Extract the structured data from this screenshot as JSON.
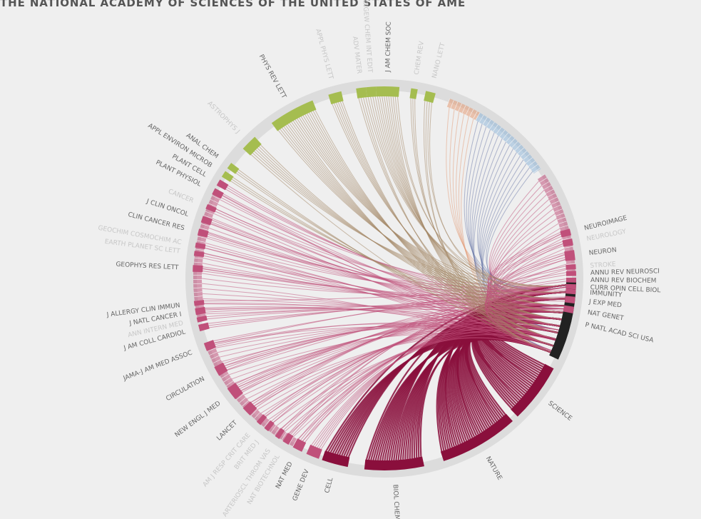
{
  "title": "THE NATIONAL ACADEMY OF SCIENCES OF THE UNITED STATES OF AME",
  "focus_journal": "P NATL ACAD SCI USA",
  "colors": {
    "background": "#efefef",
    "ring_track": "#dcdcdc",
    "focus": "#222222",
    "biomedical": "#c0507a",
    "biomedical_dark": "#8a0f3c",
    "physical": "#a5bd50",
    "chemistry_flow": "#a58a6a",
    "earth": "#e39a74",
    "computing": "#8fb6d9",
    "label_dark": "#666666",
    "label_light": "#c7c7c7"
  },
  "journals": [
    {
      "name": "P NATL ACAD SCI USA",
      "angle": 103,
      "size": 24,
      "group": "focus",
      "emph": true
    },
    {
      "name": "SCIENCE",
      "angle": 127,
      "size": 18,
      "group": "bio_dark",
      "emph": true
    },
    {
      "name": "NATURE",
      "angle": 150,
      "size": 24,
      "group": "bio_dark",
      "emph": true
    },
    {
      "name": "BIOL CHEM",
      "angle": 177,
      "size": 18,
      "group": "bio_dark",
      "emph": true
    },
    {
      "name": "CELL",
      "angle": 195,
      "size": 8,
      "group": "bio_dark",
      "emph": true
    },
    {
      "name": "GENE DEV",
      "angle": 202,
      "size": 4,
      "group": "bio",
      "emph": true
    },
    {
      "name": "NAT MED",
      "angle": 207,
      "size": 3,
      "group": "bio",
      "emph": true
    },
    {
      "name": "NAT BIOTECHNOL",
      "angle": 211,
      "size": 2,
      "group": "bio",
      "emph": false
    },
    {
      "name": "ARTERIOSCL THROM VAS",
      "angle": 214,
      "size": 1.5,
      "group": "bio",
      "emph": false
    },
    {
      "name": "BRIT MED J",
      "angle": 218,
      "size": 1.5,
      "group": "bio",
      "emph": false
    },
    {
      "name": "AM J RESP CRIT CARE",
      "angle": 221,
      "size": 1.5,
      "group": "bio",
      "emph": false
    },
    {
      "name": "LANCET",
      "angle": 226,
      "size": 3,
      "group": "bio",
      "emph": true
    },
    {
      "name": "NEW ENGL J MED",
      "angle": 233,
      "size": 4,
      "group": "bio",
      "emph": true
    },
    {
      "name": "CIRCULATION",
      "angle": 241,
      "size": 3,
      "group": "bio",
      "emph": true
    },
    {
      "name": "JAMA-J AM MED ASSOC",
      "angle": 249,
      "size": 2.5,
      "group": "bio",
      "emph": true
    },
    {
      "name": "J AM COLL CARDIOL",
      "angle": 255,
      "size": 2,
      "group": "bio",
      "emph": true
    },
    {
      "name": "ANN INTERN MED",
      "angle": 257.5,
      "size": 1.5,
      "group": "bio",
      "emph": false
    },
    {
      "name": "J NATL CANCER I",
      "angle": 260,
      "size": 2,
      "group": "bio",
      "emph": true
    },
    {
      "name": "J ALLERGY CLIN IMMUN",
      "angle": 262.5,
      "size": 1.5,
      "group": "bio",
      "emph": true
    },
    {
      "name": "GEOPHYS RES LETT",
      "angle": 273,
      "size": 2,
      "group": "bio",
      "emph": true
    },
    {
      "name": "EARTH PLANET SC LETT",
      "angle": 277.5,
      "size": 1.5,
      "group": "bio",
      "emph": false
    },
    {
      "name": "GEOCHIM COSMOCHIM AC",
      "angle": 280,
      "size": 1.5,
      "group": "bio",
      "emph": false
    },
    {
      "name": "CLIN CANCER RES",
      "angle": 284,
      "size": 2,
      "group": "bio",
      "emph": true
    },
    {
      "name": "J CLIN ONCOL",
      "angle": 288,
      "size": 2,
      "group": "bio",
      "emph": true
    },
    {
      "name": "CANCER",
      "angle": 292,
      "size": 1.5,
      "group": "bio",
      "emph": false
    },
    {
      "name": "PLANT PHYSIOL",
      "angle": 297,
      "size": 2,
      "group": "bio",
      "emph": true
    },
    {
      "name": "PLANT CELL",
      "angle": 300,
      "size": 2,
      "group": "bio",
      "emph": true
    },
    {
      "name": "APPL ENVIRON MICROB",
      "angle": 303,
      "size": 2,
      "group": "physical",
      "emph": true
    },
    {
      "name": "ANAL CHEM",
      "angle": 306,
      "size": 2,
      "group": "physical",
      "emph": true
    },
    {
      "name": "ASTROPHYS J",
      "angle": 315,
      "size": 5,
      "group": "physical",
      "emph": false
    },
    {
      "name": "PHYS REV LETT",
      "angle": 331,
      "size": 14,
      "group": "physical",
      "emph": true
    },
    {
      "name": "APPL PHYS LETT",
      "angle": 345,
      "size": 4,
      "group": "physical",
      "emph": false
    },
    {
      "name": "ADV MATER",
      "angle": 353,
      "size": 3,
      "group": "physical",
      "emph": false
    },
    {
      "name": "ANGEW CHEM INT EDIT",
      "angle": 356,
      "size": 3,
      "group": "physical",
      "emph": false
    },
    {
      "name": "J AM CHEM SOC",
      "angle": 1,
      "size": 7,
      "group": "physical",
      "emph": true
    },
    {
      "name": "CHEM REV",
      "angle": 9,
      "size": 2,
      "group": "physical",
      "emph": false
    },
    {
      "name": "NANO LETT",
      "angle": 14,
      "size": 3,
      "group": "physical",
      "emph": false
    },
    {
      "name": "NEUROIMAGE",
      "angle": 76,
      "size": 2,
      "group": "bio",
      "emph": true
    },
    {
      "name": "NEUROLOGY",
      "angle": 79,
      "size": 2,
      "group": "bio",
      "emph": false
    },
    {
      "name": "NEURON",
      "angle": 83,
      "size": 3,
      "group": "bio",
      "emph": true
    },
    {
      "name": "STROKE",
      "angle": 86.5,
      "size": 1.5,
      "group": "bio",
      "emph": false
    },
    {
      "name": "ANNU REV NEUROSCI",
      "angle": 88.5,
      "size": 1.5,
      "group": "bio",
      "emph": true
    },
    {
      "name": "ANNU REV BIOCHEM",
      "angle": 90.5,
      "size": 1.5,
      "group": "bio",
      "emph": true
    },
    {
      "name": "CURR OPIN CELL BIOL",
      "angle": 92.5,
      "size": 1.5,
      "group": "bio",
      "emph": true
    },
    {
      "name": "IMMUNITY",
      "angle": 94,
      "size": 1.5,
      "group": "bio",
      "emph": true
    },
    {
      "name": "J EXP MED",
      "angle": 96.5,
      "size": 2,
      "group": "bio",
      "emph": true
    },
    {
      "name": "NAT GENET",
      "angle": 99.5,
      "size": 2,
      "group": "bio",
      "emph": true
    }
  ],
  "clusters": [
    {
      "id": "bio-top-right",
      "start": 57,
      "end": 88,
      "group": "bio"
    },
    {
      "id": "earth-top",
      "start": 20,
      "end": 30,
      "group": "earth"
    },
    {
      "id": "computing-top",
      "start": 30,
      "end": 55,
      "group": "computing"
    },
    {
      "id": "bio-left",
      "start": 258,
      "end": 298,
      "group": "bio"
    },
    {
      "id": "bio-bottom-left",
      "start": 206,
      "end": 250,
      "group": "bio"
    }
  ]
}
